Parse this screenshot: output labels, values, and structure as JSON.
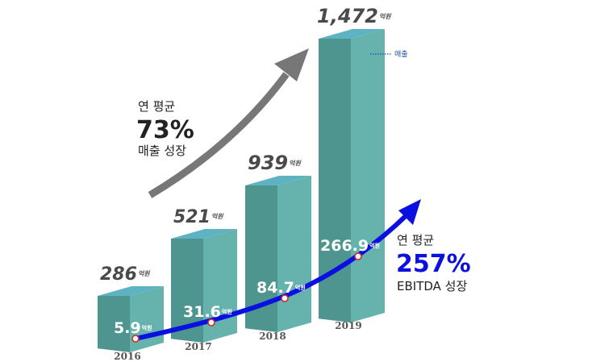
{
  "chart_data": {
    "type": "bar",
    "categories": [
      "2016",
      "2017",
      "2018",
      "2019"
    ],
    "series": [
      {
        "name": "매출",
        "values": [
          286,
          521,
          939,
          1472
        ],
        "labels": [
          "286",
          "521",
          "939",
          "1,472"
        ]
      },
      {
        "name": "EBITDA",
        "values": [
          5.9,
          31.6,
          84.7,
          266.9
        ],
        "labels": [
          "5.9",
          "31.6",
          "84.7",
          "266.9"
        ]
      }
    ],
    "unit": "억원",
    "legend": "매출",
    "colors": {
      "bar_front": "#66b2ad",
      "bar_side": "#4f958f",
      "bar_top": "#5eb3c3",
      "revenue_arrow": "#777777",
      "ebitda_line": "#0a10e0"
    }
  },
  "annotations": {
    "revenue_growth": {
      "line1": "연 평균",
      "value": "73%",
      "line3": "매출 성장"
    },
    "ebitda_growth": {
      "line1": "연 평균",
      "value": "257%",
      "line3": "EBITDA 성장"
    }
  }
}
